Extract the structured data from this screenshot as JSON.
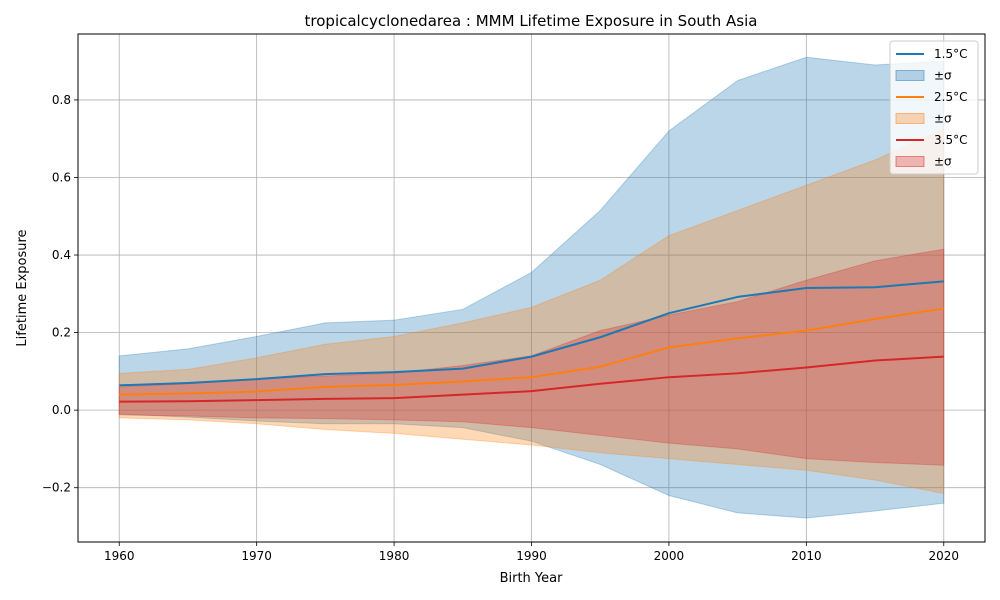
{
  "chart_data": {
    "type": "line",
    "title": "tropicalcyclonedarea : MMM Lifetime Exposure in South Asia",
    "xlabel": "Birth Year",
    "ylabel": "Lifetime Exposure",
    "xlim": [
      1957,
      2023
    ],
    "ylim": [
      -0.34,
      0.97
    ],
    "xticks": [
      1960,
      1970,
      1980,
      1990,
      2000,
      2010,
      2020
    ],
    "xtick_labels": [
      "1960",
      "1970",
      "1980",
      "1990",
      "2000",
      "2010",
      "2020"
    ],
    "yticks": [
      -0.2,
      0.0,
      0.2,
      0.4,
      0.6,
      0.8
    ],
    "ytick_labels": [
      "−0.2",
      "0.0",
      "0.2",
      "0.4",
      "0.6",
      "0.8"
    ],
    "grid": true,
    "legend_position": "upper right",
    "x": [
      1960,
      1965,
      1970,
      1975,
      1980,
      1985,
      1990,
      1995,
      2000,
      2005,
      2010,
      2015,
      2020
    ],
    "series": [
      {
        "name": "1.5°C",
        "band_label": "±σ",
        "color": "#1f77b4",
        "values": [
          0.064,
          0.07,
          0.08,
          0.093,
          0.098,
          0.107,
          0.138,
          0.188,
          0.25,
          0.292,
          0.315,
          0.317,
          0.332
        ],
        "upper": [
          0.14,
          0.158,
          0.19,
          0.225,
          0.232,
          0.26,
          0.355,
          0.515,
          0.72,
          0.85,
          0.91,
          0.89,
          0.9
        ],
        "lower": [
          -0.01,
          -0.018,
          -0.028,
          -0.035,
          -0.035,
          -0.045,
          -0.08,
          -0.14,
          -0.22,
          -0.265,
          -0.278,
          -0.26,
          -0.24
        ]
      },
      {
        "name": "2.5°C",
        "band_label": "±σ",
        "color": "#ff7f0e",
        "values": [
          0.04,
          0.043,
          0.048,
          0.06,
          0.065,
          0.074,
          0.085,
          0.112,
          0.162,
          0.185,
          0.205,
          0.235,
          0.262
        ],
        "upper": [
          0.095,
          0.105,
          0.135,
          0.17,
          0.19,
          0.225,
          0.265,
          0.335,
          0.45,
          0.515,
          0.58,
          0.645,
          0.725
        ],
        "lower": [
          -0.02,
          -0.025,
          -0.035,
          -0.05,
          -0.06,
          -0.075,
          -0.09,
          -0.11,
          -0.125,
          -0.14,
          -0.155,
          -0.18,
          -0.215
        ]
      },
      {
        "name": "3.5°C",
        "band_label": "±σ",
        "color": "#d62728",
        "values": [
          0.022,
          0.023,
          0.026,
          0.029,
          0.031,
          0.04,
          0.049,
          0.068,
          0.085,
          0.095,
          0.11,
          0.128,
          0.138
        ],
        "upper": [
          0.06,
          0.068,
          0.08,
          0.088,
          0.095,
          0.115,
          0.14,
          0.205,
          0.245,
          0.28,
          0.335,
          0.385,
          0.415
        ],
        "lower": [
          -0.012,
          -0.015,
          -0.02,
          -0.022,
          -0.025,
          -0.03,
          -0.045,
          -0.065,
          -0.085,
          -0.1,
          -0.125,
          -0.135,
          -0.142
        ]
      }
    ]
  }
}
